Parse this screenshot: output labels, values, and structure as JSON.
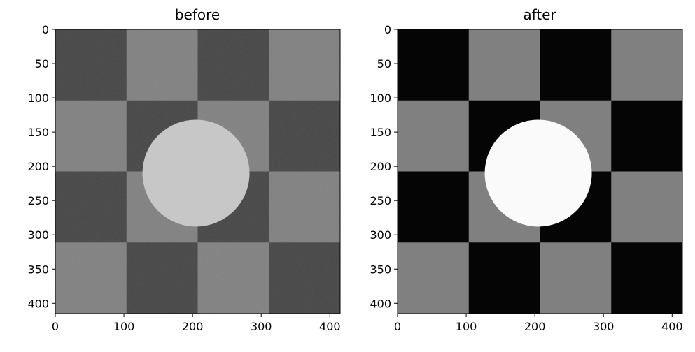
{
  "figure": {
    "panels": [
      {
        "title": "before",
        "dark_color": "#424242",
        "light_color": "#7f7f7f",
        "circle_color": "#c8c8c8",
        "noise_level": "low"
      },
      {
        "title": "after",
        "dark_color": "#050505",
        "light_color": "#808080",
        "circle_color": "#fafafa",
        "noise_level": "salt-and-pepper"
      }
    ],
    "axis": {
      "x_ticks": [
        "0",
        "100",
        "200",
        "300",
        "400"
      ],
      "y_ticks": [
        "0",
        "50",
        "100",
        "150",
        "200",
        "250",
        "300",
        "350",
        "400"
      ]
    },
    "image": {
      "grid": "4x4 checkerboard",
      "circle_center": [
        205,
        210
      ],
      "circle_radius": 78
    }
  }
}
